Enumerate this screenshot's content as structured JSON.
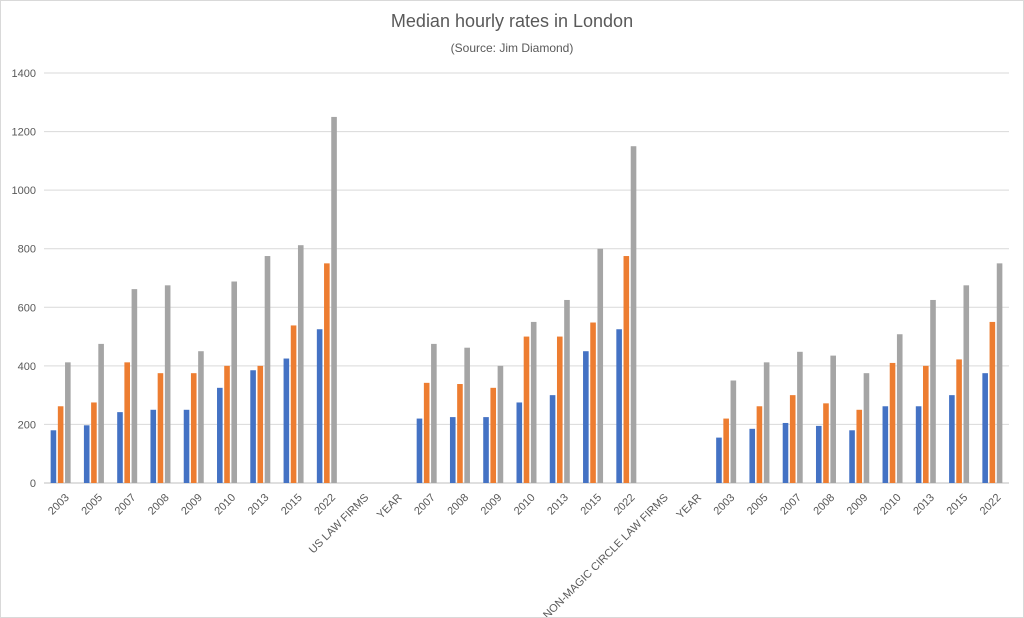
{
  "chart_data": {
    "type": "bar",
    "title": "Median hourly rates in London",
    "subtitle": "(Source: Jim Diamond)",
    "xlabel": "",
    "ylabel": "",
    "ylim": [
      0,
      1400
    ],
    "yticks": [
      0,
      200,
      400,
      600,
      800,
      1000,
      1200,
      1400
    ],
    "grid": true,
    "legend": "none",
    "categories": [
      "2003",
      "2005",
      "2007",
      "2008",
      "2009",
      "2010",
      "2013",
      "2015",
      "2022",
      "US LAW FIRMS",
      "YEAR",
      "2007",
      "2008",
      "2009",
      "2010",
      "2013",
      "2015",
      "2022",
      "NON-MAGIC CIRCLE LAW FIRMS",
      "YEAR",
      "2003",
      "2005",
      "2007",
      "2008",
      "2009",
      "2010",
      "2013",
      "2015",
      "2022"
    ],
    "series": [
      {
        "color": "#4472C4",
        "values": [
          180,
          197,
          242,
          250,
          250,
          325,
          385,
          425,
          525,
          null,
          null,
          220,
          225,
          225,
          275,
          300,
          450,
          525,
          null,
          null,
          155,
          185,
          205,
          195,
          180,
          262,
          262,
          300,
          375
        ]
      },
      {
        "color": "#ED7D31",
        "values": [
          262,
          275,
          412,
          375,
          375,
          400,
          400,
          538,
          750,
          null,
          null,
          342,
          338,
          325,
          500,
          500,
          548,
          775,
          null,
          null,
          220,
          262,
          300,
          272,
          250,
          410,
          400,
          422,
          550
        ]
      },
      {
        "color": "#A5A5A5",
        "values": [
          412,
          475,
          662,
          675,
          450,
          688,
          775,
          812,
          1250,
          null,
          null,
          475,
          462,
          400,
          550,
          625,
          800,
          1150,
          null,
          null,
          350,
          412,
          448,
          435,
          375,
          508,
          625,
          675,
          750
        ]
      }
    ]
  }
}
